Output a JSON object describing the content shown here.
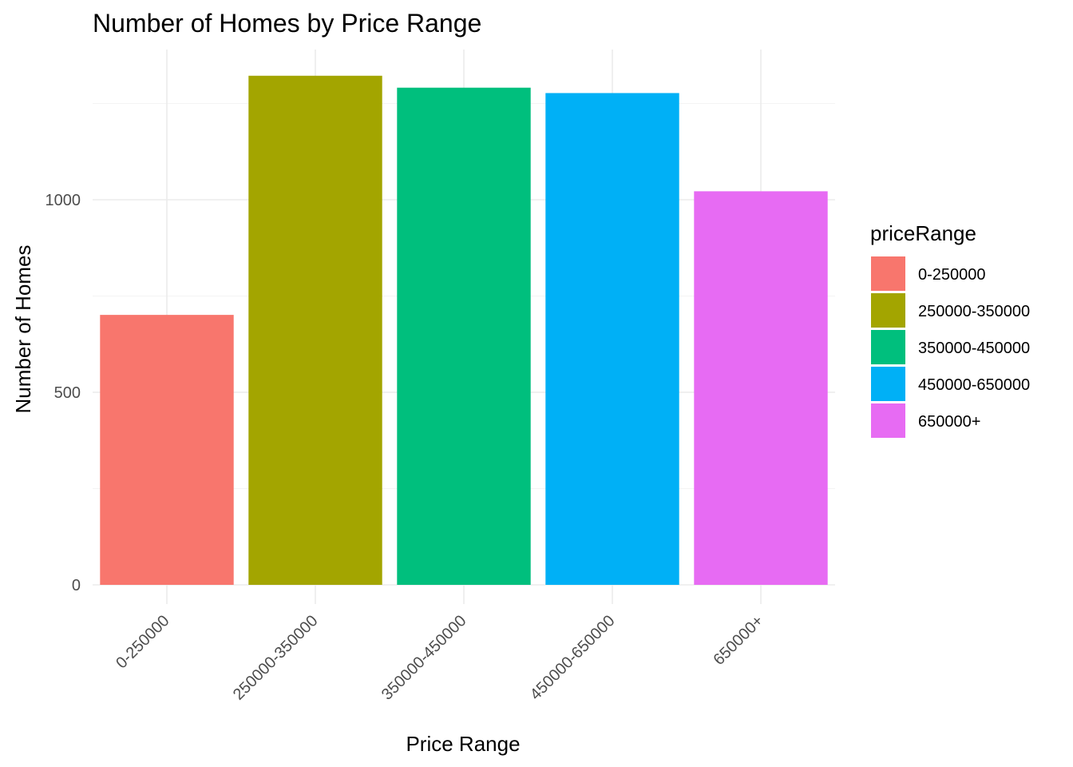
{
  "chart_data": {
    "type": "bar",
    "title": "Number of Homes by Price Range",
    "xlabel": "Price Range",
    "ylabel": "Number of Homes",
    "categories": [
      "0-250000",
      "250000-350000",
      "350000-450000",
      "450000-650000",
      "650000+"
    ],
    "values": [
      701,
      1322,
      1291,
      1277,
      1022
    ],
    "colors": [
      "#F8766D",
      "#A3A500",
      "#00BF7D",
      "#00B0F6",
      "#E76BF3"
    ],
    "yticks": [
      0,
      500,
      1000
    ],
    "ylim": [
      0,
      1390
    ],
    "grid": true,
    "legend": {
      "title": "priceRange",
      "placement": "right",
      "entries": [
        "0-250000",
        "250000-350000",
        "350000-450000",
        "450000-650000",
        "650000+"
      ]
    }
  }
}
